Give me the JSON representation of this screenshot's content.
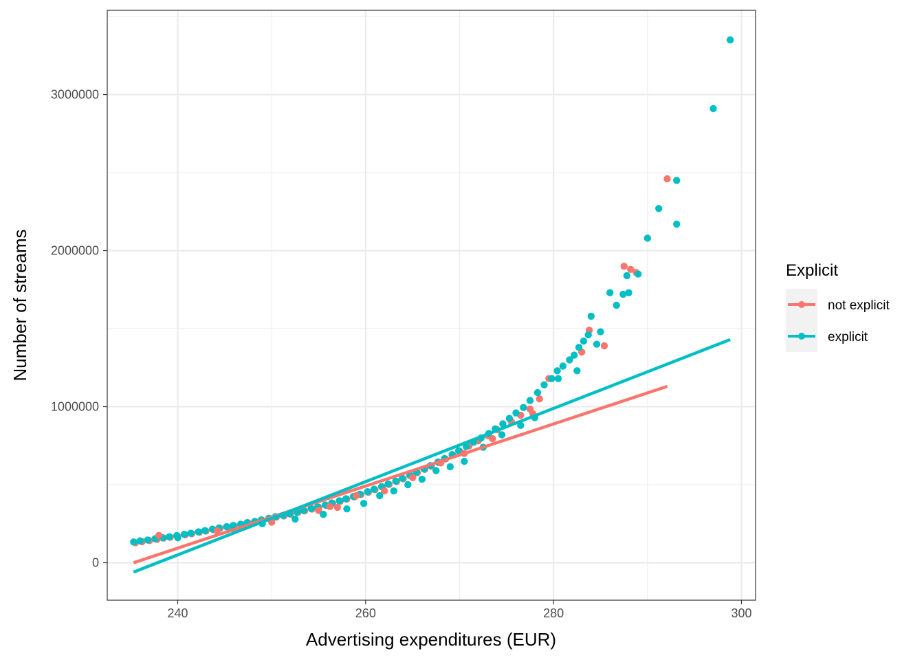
{
  "chart_data": {
    "type": "scatter",
    "title": "",
    "xlabel": "Advertising expenditures (EUR)",
    "ylabel": "Number of streams",
    "xlim": [
      232.5,
      301.5
    ],
    "ylim": [
      -240000,
      3540000
    ],
    "x_ticks": [
      240,
      260,
      280,
      300
    ],
    "x_tick_labels": [
      "240",
      "260",
      "280",
      "300"
    ],
    "y_ticks": [
      0,
      1000000,
      2000000,
      3000000
    ],
    "y_tick_labels": [
      "0",
      "1000000",
      "2000000",
      "3000000"
    ],
    "grid": true,
    "legend": {
      "title": "Explicit",
      "position": "right",
      "entries": [
        "not explicit",
        "explicit"
      ]
    },
    "series": [
      {
        "name": "not explicit",
        "color": "#F8766D",
        "fit_line": {
          "x": [
            235.3,
            292.1
          ],
          "y": [
            0,
            1130000
          ]
        },
        "points": [
          [
            235.5,
            128000
          ],
          [
            236.2,
            135000
          ],
          [
            237.0,
            142000
          ],
          [
            237.8,
            150000
          ],
          [
            238.5,
            158000
          ],
          [
            239.2,
            163000
          ],
          [
            240.0,
            170000
          ],
          [
            240.8,
            178000
          ],
          [
            241.5,
            186000
          ],
          [
            242.3,
            195000
          ],
          [
            243.0,
            203000
          ],
          [
            243.8,
            212000
          ],
          [
            244.5,
            221000
          ],
          [
            245.3,
            228000
          ],
          [
            246.0,
            236000
          ],
          [
            246.8,
            245000
          ],
          [
            247.5,
            255000
          ],
          [
            248.3,
            262000
          ],
          [
            249.0,
            272000
          ],
          [
            249.8,
            282000
          ],
          [
            250.5,
            292000
          ],
          [
            251.3,
            300000
          ],
          [
            252.0,
            311000
          ],
          [
            252.8,
            322000
          ],
          [
            253.5,
            332000
          ],
          [
            254.3,
            344000
          ],
          [
            255.0,
            356000
          ],
          [
            255.8,
            367000
          ],
          [
            256.5,
            380000
          ],
          [
            257.3,
            394000
          ],
          [
            258.0,
            408000
          ],
          [
            258.8,
            422000
          ],
          [
            259.5,
            437000
          ],
          [
            260.3,
            452000
          ],
          [
            261.0,
            468000
          ],
          [
            261.8,
            485000
          ],
          [
            262.5,
            502000
          ],
          [
            263.3,
            520000
          ],
          [
            264.0,
            538000
          ],
          [
            264.8,
            557000
          ],
          [
            265.5,
            577000
          ],
          [
            266.3,
            598000
          ],
          [
            267.0,
            619000
          ],
          [
            267.8,
            642000
          ],
          [
            268.5,
            665000
          ],
          [
            269.3,
            690000
          ],
          [
            270.0,
            715000
          ],
          [
            271.0,
            748000
          ],
          [
            272.0,
            781000
          ],
          [
            273.0,
            815000
          ],
          [
            274.0,
            852000
          ],
          [
            275.5,
            905000
          ],
          [
            276.5,
            945000
          ],
          [
            277.5,
            985000
          ],
          [
            278.5,
            1050000
          ],
          [
            279.5,
            1180000
          ],
          [
            283.0,
            1350000
          ],
          [
            283.8,
            1490000
          ],
          [
            285.4,
            1390000
          ],
          [
            287.5,
            1900000
          ],
          [
            288.2,
            1880000
          ],
          [
            288.8,
            1860000
          ],
          [
            292.1,
            2460000
          ],
          [
            238.0,
            175000
          ],
          [
            244.2,
            205000
          ],
          [
            250.0,
            260000
          ],
          [
            255.0,
            335000
          ],
          [
            256.2,
            360000
          ],
          [
            257.0,
            355000
          ],
          [
            259.0,
            430000
          ],
          [
            262.0,
            460000
          ],
          [
            265.0,
            545000
          ],
          [
            268.0,
            640000
          ],
          [
            270.5,
            700000
          ],
          [
            273.5,
            795000
          ],
          [
            277.8,
            955000
          ]
        ]
      },
      {
        "name": "explicit",
        "color": "#00BFC4",
        "fit_line": {
          "x": [
            235.3,
            298.8
          ],
          "y": [
            -60000,
            1430000
          ]
        },
        "points": [
          [
            235.3,
            133000
          ],
          [
            236.0,
            140000
          ],
          [
            236.8,
            146000
          ],
          [
            237.6,
            154000
          ],
          [
            238.4,
            160000
          ],
          [
            239.1,
            166000
          ],
          [
            239.9,
            174000
          ],
          [
            240.7,
            182000
          ],
          [
            241.4,
            189000
          ],
          [
            242.2,
            198000
          ],
          [
            242.9,
            206000
          ],
          [
            243.7,
            215000
          ],
          [
            244.4,
            223000
          ],
          [
            245.2,
            231000
          ],
          [
            245.9,
            239000
          ],
          [
            246.7,
            247000
          ],
          [
            247.4,
            257000
          ],
          [
            248.2,
            265000
          ],
          [
            248.9,
            274000
          ],
          [
            249.7,
            285000
          ],
          [
            250.4,
            295000
          ],
          [
            251.2,
            303000
          ],
          [
            251.9,
            314000
          ],
          [
            252.7,
            325000
          ],
          [
            253.4,
            335000
          ],
          [
            254.2,
            347000
          ],
          [
            254.9,
            358000
          ],
          [
            255.7,
            370000
          ],
          [
            256.4,
            383000
          ],
          [
            257.2,
            397000
          ],
          [
            257.9,
            410000
          ],
          [
            258.7,
            425000
          ],
          [
            259.4,
            440000
          ],
          [
            260.2,
            455000
          ],
          [
            260.9,
            471000
          ],
          [
            261.7,
            488000
          ],
          [
            262.4,
            505000
          ],
          [
            263.2,
            523000
          ],
          [
            263.9,
            541000
          ],
          [
            264.7,
            560000
          ],
          [
            265.4,
            580000
          ],
          [
            266.2,
            601000
          ],
          [
            266.9,
            622000
          ],
          [
            267.7,
            646000
          ],
          [
            268.4,
            668000
          ],
          [
            269.2,
            693000
          ],
          [
            269.9,
            718000
          ],
          [
            270.7,
            745000
          ],
          [
            271.5,
            772000
          ],
          [
            272.3,
            800000
          ],
          [
            273.1,
            828000
          ],
          [
            273.8,
            858000
          ],
          [
            274.6,
            890000
          ],
          [
            275.3,
            925000
          ],
          [
            276.0,
            960000
          ],
          [
            276.8,
            995000
          ],
          [
            277.5,
            1040000
          ],
          [
            278.3,
            1090000
          ],
          [
            279.0,
            1140000
          ],
          [
            279.8,
            1180000
          ],
          [
            280.4,
            1230000
          ],
          [
            281.0,
            1260000
          ],
          [
            281.7,
            1300000
          ],
          [
            282.2,
            1330000
          ],
          [
            282.7,
            1380000
          ],
          [
            283.2,
            1420000
          ],
          [
            283.7,
            1460000
          ],
          [
            284.0,
            1580000
          ],
          [
            284.6,
            1400000
          ],
          [
            285.0,
            1480000
          ],
          [
            286.0,
            1730000
          ],
          [
            286.7,
            1650000
          ],
          [
            287.4,
            1720000
          ],
          [
            287.8,
            1840000
          ],
          [
            288.0,
            1730000
          ],
          [
            289.0,
            1850000
          ],
          [
            290.0,
            2080000
          ],
          [
            291.2,
            2270000
          ],
          [
            293.1,
            2170000
          ],
          [
            293.1,
            2450000
          ],
          [
            297.0,
            2910000
          ],
          [
            298.8,
            3350000
          ],
          [
            240.0,
            160000
          ],
          [
            246.0,
            215000
          ],
          [
            249.0,
            250000
          ],
          [
            252.5,
            280000
          ],
          [
            255.5,
            310000
          ],
          [
            258.0,
            345000
          ],
          [
            259.8,
            380000
          ],
          [
            261.5,
            430000
          ],
          [
            263.0,
            460000
          ],
          [
            264.5,
            500000
          ],
          [
            266.0,
            535000
          ],
          [
            267.5,
            590000
          ],
          [
            269.0,
            615000
          ],
          [
            270.5,
            650000
          ],
          [
            272.5,
            740000
          ],
          [
            274.5,
            820000
          ],
          [
            276.5,
            880000
          ],
          [
            278.0,
            930000
          ],
          [
            280.5,
            1180000
          ],
          [
            282.5,
            1230000
          ]
        ]
      }
    ]
  }
}
